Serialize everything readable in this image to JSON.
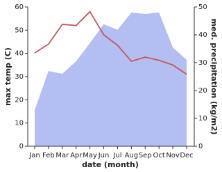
{
  "chart_data": {
    "type": "line-area",
    "x_label": "date (month)",
    "y_label": "max temp (C)",
    "y2_label": "med. precipitation (kg/m2)",
    "categories": [
      "Jan",
      "Feb",
      "Mar",
      "Apr",
      "May",
      "Jun",
      "Jul",
      "Aug",
      "Sep",
      "Oct",
      "Nov",
      "Dec"
    ],
    "series": [
      {
        "name": "med. precipitation",
        "type": "area",
        "axis": "y2",
        "color": "#b3bff2",
        "values": [
          13,
          27,
          26,
          30.5,
          37,
          43.8,
          41.8,
          48,
          47.5,
          48,
          35.5,
          31
        ]
      },
      {
        "name": "max temp",
        "type": "line",
        "axis": "y",
        "color": "#c0595a",
        "values": [
          40.2,
          44,
          52.5,
          52,
          58,
          48,
          43.5,
          36.6,
          38.4,
          37,
          35,
          31
        ]
      }
    ],
    "ylim": [
      0,
      60
    ],
    "yticks": [
      0,
      10,
      20,
      30,
      40,
      50,
      60
    ],
    "y2lim": [
      0,
      50
    ],
    "y2ticks": [
      0,
      10,
      20,
      30,
      40,
      50
    ]
  }
}
